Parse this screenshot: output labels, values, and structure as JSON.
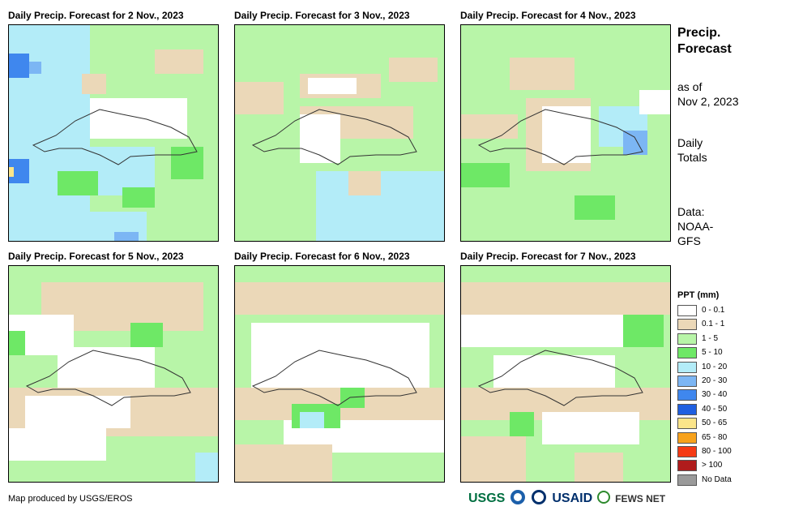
{
  "panels": [
    {
      "title": "Daily Precip. Forecast for 2 Nov., 2023"
    },
    {
      "title": "Daily Precip. Forecast for 3 Nov., 2023"
    },
    {
      "title": "Daily Precip. Forecast for 4 Nov., 2023"
    },
    {
      "title": "Daily Precip. Forecast for 5 Nov., 2023"
    },
    {
      "title": "Daily Precip. Forecast for 6 Nov., 2023"
    },
    {
      "title": "Daily Precip. Forecast for 7 Nov., 2023"
    }
  ],
  "sidebar": {
    "title_line1": "Precip.",
    "title_line2": "Forecast",
    "asof_line1": "as of",
    "asof_line2": "Nov 2, 2023",
    "daily_line1": "Daily",
    "daily_line2": "Totals",
    "data_line1": "Data:",
    "data_line2": "NOAA-",
    "data_line3": "GFS"
  },
  "legend": {
    "title": "PPT (mm)",
    "items": [
      {
        "label": "0 - 0.1",
        "color": "#ffffff"
      },
      {
        "label": "0.1 - 1",
        "color": "#ebd8b8"
      },
      {
        "label": "1 - 5",
        "color": "#b8f5a8"
      },
      {
        "label": "5 - 10",
        "color": "#6ee866"
      },
      {
        "label": "10 - 20",
        "color": "#b3ecf8"
      },
      {
        "label": "20 - 30",
        "color": "#7cb6f4"
      },
      {
        "label": "30 - 40",
        "color": "#3f87ee"
      },
      {
        "label": "40 - 50",
        "color": "#1f5fe0"
      },
      {
        "label": "50 - 65",
        "color": "#fbe58a"
      },
      {
        "label": "65 - 80",
        "color": "#f7a21c"
      },
      {
        "label": "80 - 100",
        "color": "#f53a14"
      },
      {
        "label": "> 100",
        "color": "#b01c1c"
      },
      {
        "label": "No Data",
        "color": "#9a9a9a"
      }
    ]
  },
  "credit": "Map produced by USGS/EROS",
  "logos": {
    "usgs": "USGS",
    "usaid": "USAID",
    "fewsnet": "FEWS NET"
  }
}
